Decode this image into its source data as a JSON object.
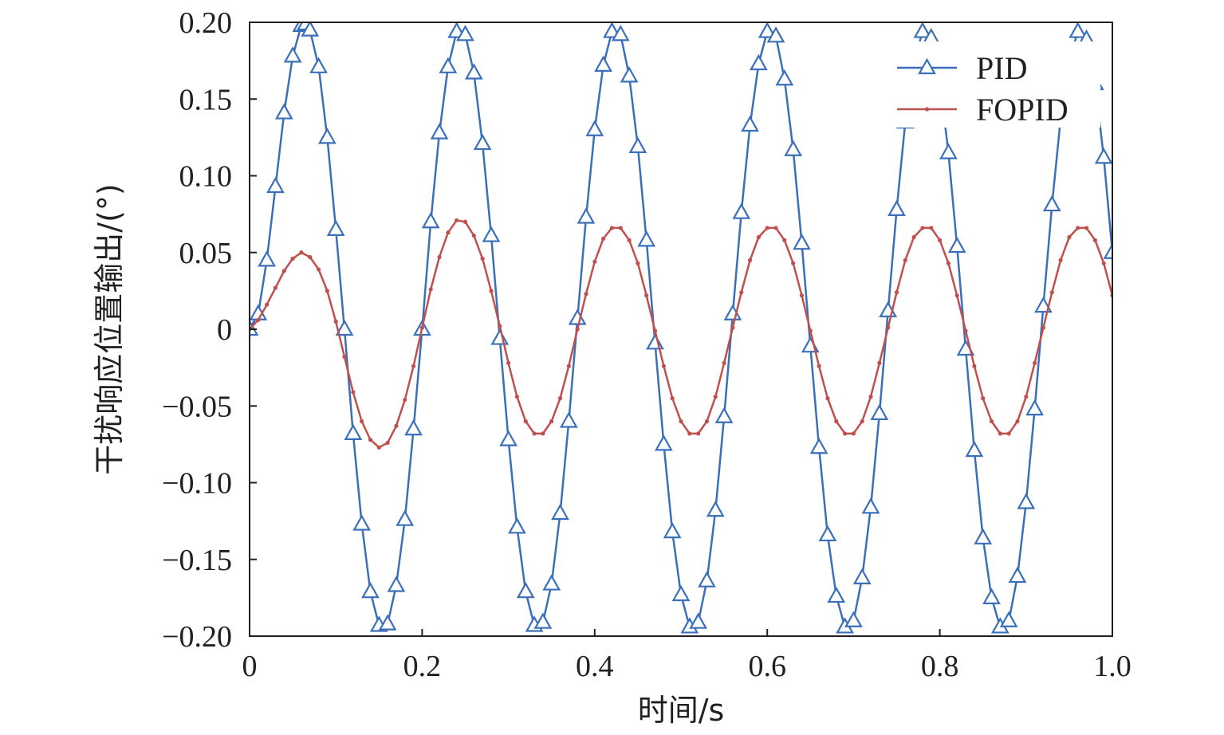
{
  "chart_data": {
    "type": "line",
    "title": "",
    "xlabel": "时间/s",
    "ylabel": "干扰响应位置输出/(°)",
    "xlim": [
      0,
      1.0
    ],
    "ylim": [
      -0.2,
      0.2
    ],
    "xticks": [
      "0",
      "0.2",
      "0.4",
      "0.6",
      "0.8",
      "1.0"
    ],
    "yticks": [
      "0.20",
      "0.15",
      "0.10",
      "0.05",
      "0",
      "−0.05",
      "−0.10",
      "−0.15",
      "−0.20"
    ],
    "grid": false,
    "legend_position": "top-right",
    "series": [
      {
        "name": "PID",
        "color": "#3a6fba",
        "marker": "triangle",
        "x": [
          0,
          0.01,
          0.02,
          0.03,
          0.04,
          0.05,
          0.06,
          0.065,
          0.07,
          0.08,
          0.09,
          0.1,
          0.11,
          0.12,
          0.13,
          0.14,
          0.15,
          0.16,
          0.17,
          0.18,
          0.19,
          0.2,
          0.21,
          0.22,
          0.23,
          0.24,
          0.25,
          0.26,
          0.27,
          0.28,
          0.29,
          0.3,
          0.31,
          0.32,
          0.33,
          0.34,
          0.35,
          0.36,
          0.37,
          0.38,
          0.39,
          0.4,
          0.41,
          0.42,
          0.43,
          0.44,
          0.45,
          0.46,
          0.47,
          0.48,
          0.49,
          0.5,
          0.51,
          0.52,
          0.53,
          0.54,
          0.55,
          0.56,
          0.57,
          0.58,
          0.59,
          0.6,
          0.61,
          0.62,
          0.63,
          0.64,
          0.65,
          0.66,
          0.67,
          0.68,
          0.69,
          0.7,
          0.71,
          0.72,
          0.73,
          0.74,
          0.75,
          0.76,
          0.77,
          0.78,
          0.79,
          0.8,
          0.81,
          0.82,
          0.83,
          0.84,
          0.85,
          0.86,
          0.87,
          0.88,
          0.89,
          0.9,
          0.91,
          0.92,
          0.93,
          0.94,
          0.95,
          0.96,
          0.97,
          0.98,
          0.99,
          1.0
        ],
        "y": [
          0,
          0.01,
          0.045,
          0.093,
          0.141,
          0.178,
          0.198,
          0.199,
          0.195,
          0.171,
          0.125,
          0.065,
          0.0,
          -0.068,
          -0.127,
          -0.171,
          -0.193,
          -0.192,
          -0.167,
          -0.124,
          -0.065,
          0.0,
          0.07,
          0.128,
          0.171,
          0.194,
          0.192,
          0.167,
          0.121,
          0.061,
          -0.006,
          -0.072,
          -0.129,
          -0.171,
          -0.193,
          -0.191,
          -0.166,
          -0.12,
          -0.06,
          0.007,
          0.073,
          0.13,
          0.172,
          0.194,
          0.192,
          0.165,
          0.119,
          0.058,
          -0.009,
          -0.075,
          -0.132,
          -0.173,
          -0.194,
          -0.191,
          -0.164,
          -0.118,
          -0.057,
          0.01,
          0.076,
          0.133,
          0.173,
          0.194,
          0.191,
          0.163,
          0.117,
          0.056,
          -0.011,
          -0.077,
          -0.134,
          -0.174,
          -0.194,
          -0.19,
          -0.162,
          -0.116,
          -0.055,
          0.012,
          0.078,
          0.135,
          0.174,
          0.194,
          0.19,
          0.162,
          0.115,
          0.054,
          -0.013,
          -0.079,
          -0.136,
          -0.175,
          -0.194,
          -0.19,
          -0.161,
          -0.113,
          -0.052,
          0.015,
          0.081,
          0.137,
          0.175,
          0.194,
          0.189,
          0.16,
          0.112,
          0.05
        ]
      },
      {
        "name": "FOPID",
        "color": "#c0504d",
        "marker": "dot",
        "x": [
          0,
          0.01,
          0.02,
          0.03,
          0.04,
          0.05,
          0.06,
          0.07,
          0.08,
          0.09,
          0.1,
          0.11,
          0.12,
          0.13,
          0.14,
          0.15,
          0.16,
          0.17,
          0.18,
          0.19,
          0.2,
          0.21,
          0.22,
          0.23,
          0.24,
          0.25,
          0.26,
          0.27,
          0.28,
          0.29,
          0.3,
          0.31,
          0.32,
          0.33,
          0.34,
          0.35,
          0.36,
          0.37,
          0.38,
          0.39,
          0.4,
          0.41,
          0.42,
          0.43,
          0.44,
          0.45,
          0.46,
          0.47,
          0.48,
          0.49,
          0.5,
          0.51,
          0.52,
          0.53,
          0.54,
          0.55,
          0.56,
          0.57,
          0.58,
          0.59,
          0.6,
          0.61,
          0.62,
          0.63,
          0.64,
          0.65,
          0.66,
          0.67,
          0.68,
          0.69,
          0.7,
          0.71,
          0.72,
          0.73,
          0.74,
          0.75,
          0.76,
          0.77,
          0.78,
          0.79,
          0.8,
          0.81,
          0.82,
          0.83,
          0.84,
          0.85,
          0.86,
          0.87,
          0.88,
          0.89,
          0.9,
          0.91,
          0.92,
          0.93,
          0.94,
          0.95,
          0.96,
          0.97,
          0.98,
          0.99,
          1.0
        ],
        "y": [
          0,
          0.006,
          0.016,
          0.027,
          0.038,
          0.046,
          0.05,
          0.047,
          0.039,
          0.025,
          0.005,
          -0.018,
          -0.041,
          -0.06,
          -0.072,
          -0.077,
          -0.074,
          -0.063,
          -0.046,
          -0.024,
          0.001,
          0.026,
          0.047,
          0.063,
          0.071,
          0.07,
          0.061,
          0.046,
          0.025,
          0.002,
          -0.022,
          -0.044,
          -0.06,
          -0.068,
          -0.068,
          -0.06,
          -0.045,
          -0.024,
          0.0,
          0.023,
          0.044,
          0.059,
          0.066,
          0.066,
          0.058,
          0.043,
          0.022,
          -0.001,
          -0.024,
          -0.045,
          -0.06,
          -0.068,
          -0.068,
          -0.06,
          -0.044,
          -0.022,
          0.001,
          0.024,
          0.045,
          0.06,
          0.066,
          0.066,
          0.058,
          0.043,
          0.022,
          -0.001,
          -0.024,
          -0.045,
          -0.06,
          -0.068,
          -0.068,
          -0.06,
          -0.044,
          -0.022,
          0.001,
          0.024,
          0.045,
          0.06,
          0.066,
          0.066,
          0.058,
          0.043,
          0.022,
          -0.001,
          -0.024,
          -0.045,
          -0.06,
          -0.068,
          -0.068,
          -0.06,
          -0.044,
          -0.022,
          0.001,
          0.024,
          0.045,
          0.06,
          0.066,
          0.066,
          0.058,
          0.043,
          0.022
        ]
      }
    ]
  }
}
